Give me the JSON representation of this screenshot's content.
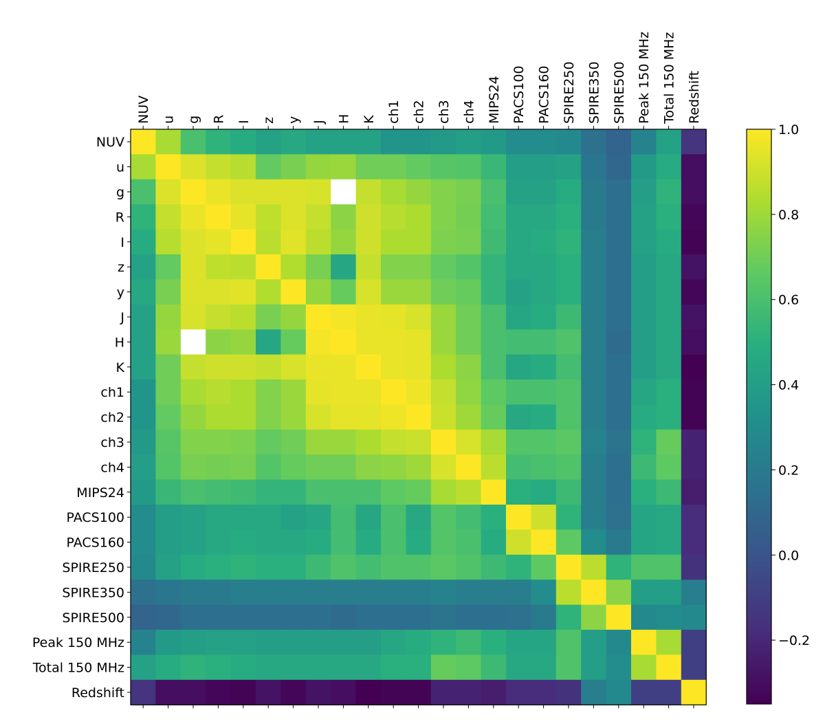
{
  "chart_data": {
    "type": "heatmap",
    "title": "",
    "xlabel": "",
    "ylabel": "",
    "labels": [
      "NUV",
      "u",
      "g",
      "R",
      "I",
      "z",
      "y",
      "J",
      "H",
      "K",
      "ch1",
      "ch2",
      "ch3",
      "ch4",
      "MIPS24",
      "PACS100",
      "PACS160",
      "SPIRE250",
      "SPIRE350",
      "SPIRE500",
      "Peak 150 MHz",
      "Total 150 MHz",
      "Redshift"
    ],
    "colormap": "viridis",
    "vmin": -0.35,
    "vmax": 1.0,
    "colorbar_ticks": [
      1.0,
      0.8,
      0.6,
      0.4,
      0.2,
      0.0,
      -0.2
    ],
    "colorbar_tick_labels": [
      "1.0",
      "0.8",
      "0.6",
      "0.4",
      "0.2",
      "0.0",
      "−0.2"
    ],
    "missing_cells": [
      [
        2,
        8
      ],
      [
        8,
        2
      ]
    ],
    "matrix": [
      [
        1.0,
        0.82,
        0.6,
        0.52,
        0.48,
        0.42,
        0.46,
        0.42,
        0.42,
        0.42,
        0.35,
        0.35,
        0.38,
        0.4,
        0.38,
        0.3,
        0.3,
        0.28,
        0.15,
        0.08,
        0.25,
        0.42,
        -0.15
      ],
      [
        0.82,
        1.0,
        0.93,
        0.88,
        0.85,
        0.67,
        0.72,
        0.78,
        0.79,
        0.7,
        0.7,
        0.67,
        0.64,
        0.63,
        0.55,
        0.4,
        0.4,
        0.42,
        0.18,
        0.1,
        0.38,
        0.48,
        -0.3
      ],
      [
        0.6,
        0.93,
        1.0,
        0.96,
        0.93,
        0.93,
        0.93,
        0.92,
        null,
        0.88,
        0.82,
        0.78,
        0.74,
        0.72,
        0.6,
        0.42,
        0.42,
        0.48,
        0.2,
        0.14,
        0.4,
        0.52,
        -0.3
      ],
      [
        0.52,
        0.88,
        0.96,
        1.0,
        0.95,
        0.87,
        0.93,
        0.88,
        0.76,
        0.9,
        0.85,
        0.83,
        0.74,
        0.71,
        0.58,
        0.46,
        0.46,
        0.5,
        0.2,
        0.14,
        0.42,
        0.5,
        -0.33
      ],
      [
        0.48,
        0.85,
        0.93,
        0.95,
        1.0,
        0.86,
        0.94,
        0.86,
        0.78,
        0.9,
        0.83,
        0.83,
        0.73,
        0.72,
        0.57,
        0.46,
        0.48,
        0.52,
        0.22,
        0.14,
        0.42,
        0.48,
        -0.34
      ],
      [
        0.42,
        0.67,
        0.93,
        0.87,
        0.86,
        1.0,
        0.84,
        0.72,
        0.45,
        0.88,
        0.74,
        0.74,
        0.67,
        0.63,
        0.53,
        0.46,
        0.46,
        0.5,
        0.22,
        0.14,
        0.4,
        0.46,
        -0.28
      ],
      [
        0.46,
        0.72,
        0.93,
        0.93,
        0.94,
        0.84,
        1.0,
        0.78,
        0.68,
        0.92,
        0.79,
        0.79,
        0.7,
        0.68,
        0.53,
        0.42,
        0.46,
        0.5,
        0.22,
        0.14,
        0.4,
        0.46,
        -0.33
      ],
      [
        0.42,
        0.78,
        0.92,
        0.88,
        0.86,
        0.72,
        0.78,
        1.0,
        0.98,
        0.96,
        0.95,
        0.92,
        0.79,
        0.7,
        0.6,
        0.45,
        0.48,
        0.56,
        0.22,
        0.14,
        0.4,
        0.46,
        -0.28
      ],
      [
        0.42,
        0.79,
        null,
        0.76,
        0.78,
        0.45,
        0.68,
        0.98,
        1.0,
        0.96,
        0.96,
        0.95,
        0.79,
        0.7,
        0.6,
        0.58,
        0.58,
        0.62,
        0.22,
        0.12,
        0.4,
        0.46,
        -0.3
      ],
      [
        0.42,
        0.7,
        0.88,
        0.9,
        0.9,
        0.88,
        0.92,
        0.96,
        0.96,
        1.0,
        0.96,
        0.95,
        0.83,
        0.76,
        0.6,
        0.45,
        0.48,
        0.58,
        0.22,
        0.14,
        0.4,
        0.46,
        -0.35
      ],
      [
        0.35,
        0.7,
        0.82,
        0.85,
        0.83,
        0.74,
        0.79,
        0.95,
        0.96,
        0.96,
        1.0,
        0.97,
        0.88,
        0.77,
        0.66,
        0.6,
        0.6,
        0.62,
        0.22,
        0.14,
        0.45,
        0.5,
        -0.34
      ],
      [
        0.35,
        0.67,
        0.78,
        0.83,
        0.83,
        0.74,
        0.79,
        0.92,
        0.95,
        0.95,
        0.97,
        1.0,
        0.89,
        0.8,
        0.68,
        0.46,
        0.48,
        0.62,
        0.22,
        0.14,
        0.48,
        0.5,
        -0.34
      ],
      [
        0.38,
        0.64,
        0.74,
        0.74,
        0.73,
        0.67,
        0.7,
        0.79,
        0.79,
        0.83,
        0.88,
        0.89,
        1.0,
        0.92,
        0.82,
        0.63,
        0.63,
        0.65,
        0.25,
        0.16,
        0.52,
        0.68,
        -0.22
      ],
      [
        0.4,
        0.63,
        0.72,
        0.71,
        0.72,
        0.63,
        0.68,
        0.7,
        0.7,
        0.76,
        0.77,
        0.8,
        0.92,
        1.0,
        0.86,
        0.58,
        0.6,
        0.62,
        0.22,
        0.14,
        0.56,
        0.66,
        -0.22
      ],
      [
        0.38,
        0.55,
        0.6,
        0.58,
        0.57,
        0.53,
        0.53,
        0.6,
        0.6,
        0.6,
        0.66,
        0.68,
        0.82,
        0.86,
        1.0,
        0.5,
        0.48,
        0.56,
        0.22,
        0.14,
        0.5,
        0.56,
        -0.24
      ],
      [
        0.3,
        0.4,
        0.42,
        0.46,
        0.46,
        0.46,
        0.42,
        0.45,
        0.58,
        0.45,
        0.6,
        0.46,
        0.63,
        0.58,
        0.5,
        1.0,
        0.9,
        0.52,
        0.22,
        0.15,
        0.44,
        0.46,
        -0.18
      ],
      [
        0.3,
        0.4,
        0.42,
        0.46,
        0.48,
        0.46,
        0.46,
        0.48,
        0.58,
        0.48,
        0.6,
        0.48,
        0.63,
        0.6,
        0.48,
        0.9,
        1.0,
        0.66,
        0.3,
        0.2,
        0.44,
        0.46,
        -0.18
      ],
      [
        0.28,
        0.42,
        0.48,
        0.5,
        0.52,
        0.5,
        0.5,
        0.56,
        0.62,
        0.58,
        0.62,
        0.62,
        0.65,
        0.62,
        0.56,
        0.52,
        0.66,
        1.0,
        0.86,
        0.52,
        0.62,
        0.62,
        -0.16
      ],
      [
        0.15,
        0.18,
        0.2,
        0.2,
        0.22,
        0.22,
        0.22,
        0.22,
        0.22,
        0.22,
        0.22,
        0.22,
        0.25,
        0.22,
        0.22,
        0.22,
        0.3,
        0.86,
        1.0,
        0.76,
        0.4,
        0.4,
        0.22
      ],
      [
        0.08,
        0.1,
        0.14,
        0.14,
        0.14,
        0.14,
        0.14,
        0.14,
        0.12,
        0.14,
        0.14,
        0.14,
        0.16,
        0.14,
        0.14,
        0.15,
        0.2,
        0.52,
        0.76,
        1.0,
        0.28,
        0.3,
        0.28
      ],
      [
        0.25,
        0.38,
        0.4,
        0.42,
        0.42,
        0.4,
        0.4,
        0.4,
        0.4,
        0.4,
        0.45,
        0.48,
        0.52,
        0.56,
        0.5,
        0.44,
        0.44,
        0.62,
        0.4,
        0.28,
        1.0,
        0.82,
        -0.1
      ],
      [
        0.42,
        0.48,
        0.52,
        0.5,
        0.48,
        0.46,
        0.46,
        0.46,
        0.46,
        0.46,
        0.5,
        0.5,
        0.68,
        0.66,
        0.56,
        0.46,
        0.46,
        0.62,
        0.4,
        0.3,
        0.82,
        1.0,
        -0.1
      ],
      [
        -0.15,
        -0.3,
        -0.3,
        -0.33,
        -0.34,
        -0.28,
        -0.33,
        -0.28,
        -0.3,
        -0.35,
        -0.34,
        -0.34,
        -0.22,
        -0.22,
        -0.24,
        -0.18,
        -0.18,
        -0.16,
        0.22,
        0.28,
        -0.1,
        -0.1,
        1.0
      ]
    ]
  }
}
